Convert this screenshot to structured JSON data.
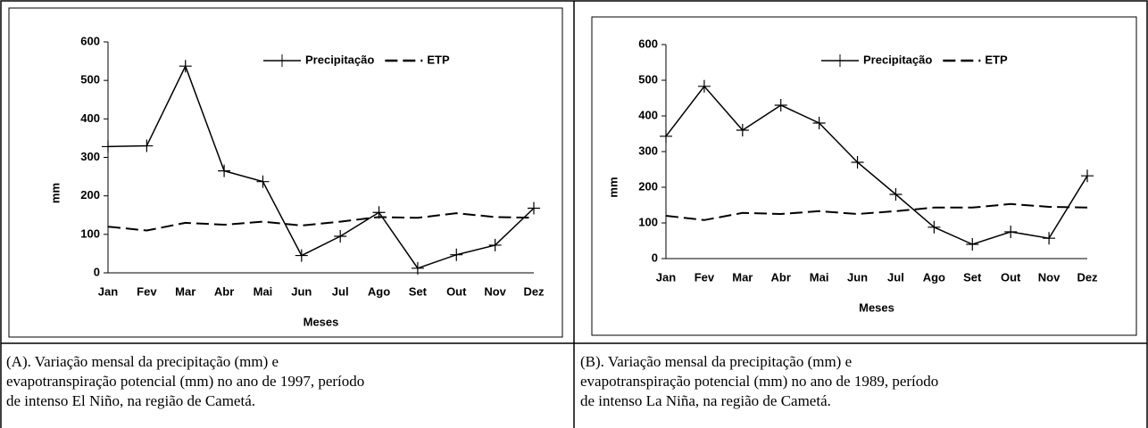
{
  "chart_data": [
    {
      "type": "line",
      "xlabel": "Meses",
      "ylabel": "mm",
      "categories": [
        "Jan",
        "Fev",
        "Mar",
        "Abr",
        "Mai",
        "Jun",
        "Jul",
        "Ago",
        "Set",
        "Out",
        "Nov",
        "Dez"
      ],
      "series": [
        {
          "name": "Precipitação",
          "color": "#000000",
          "marker": "plus",
          "dashed": false,
          "values": [
            328,
            330,
            537,
            265,
            237,
            45,
            95,
            157,
            12,
            47,
            72,
            168
          ]
        },
        {
          "name": "ETP",
          "color": "#000000",
          "marker": "none",
          "dashed": true,
          "values": [
            120,
            110,
            130,
            125,
            133,
            123,
            133,
            145,
            143,
            155,
            145,
            143
          ]
        }
      ],
      "ylim": [
        0,
        600
      ],
      "yticks": [
        0,
        100,
        200,
        300,
        400,
        500,
        600
      ],
      "grid": false,
      "legend": "upper right"
    },
    {
      "type": "line",
      "xlabel": "Meses",
      "ylabel": "mm",
      "categories": [
        "Jan",
        "Fev",
        "Mar",
        "Abr",
        "Mai",
        "Jun",
        "Jul",
        "Ago",
        "Set",
        "Out",
        "Nov",
        "Dez"
      ],
      "series": [
        {
          "name": "Precipitação",
          "color": "#000000",
          "marker": "plus",
          "dashed": false,
          "values": [
            343,
            483,
            360,
            430,
            380,
            270,
            180,
            88,
            40,
            75,
            57,
            232
          ]
        },
        {
          "name": "ETP",
          "color": "#000000",
          "marker": "none",
          "dashed": true,
          "values": [
            120,
            108,
            128,
            125,
            133,
            125,
            133,
            143,
            143,
            153,
            145,
            143
          ]
        }
      ],
      "ylim": [
        0,
        600
      ],
      "yticks": [
        0,
        100,
        200,
        300,
        400,
        500,
        600
      ],
      "grid": false,
      "legend": "upper right"
    }
  ],
  "captions": [
    "(A). Variação mensal da precipitação (mm) e evapotranspiração potencial (mm) no ano de 1997, período de intenso El Niño, na região de Cametá.",
    "(B). Variação mensal da precipitação (mm) e evapotranspiração potencial (mm) no ano de 1989, período de intenso La Niña, na região de Cametá."
  ]
}
